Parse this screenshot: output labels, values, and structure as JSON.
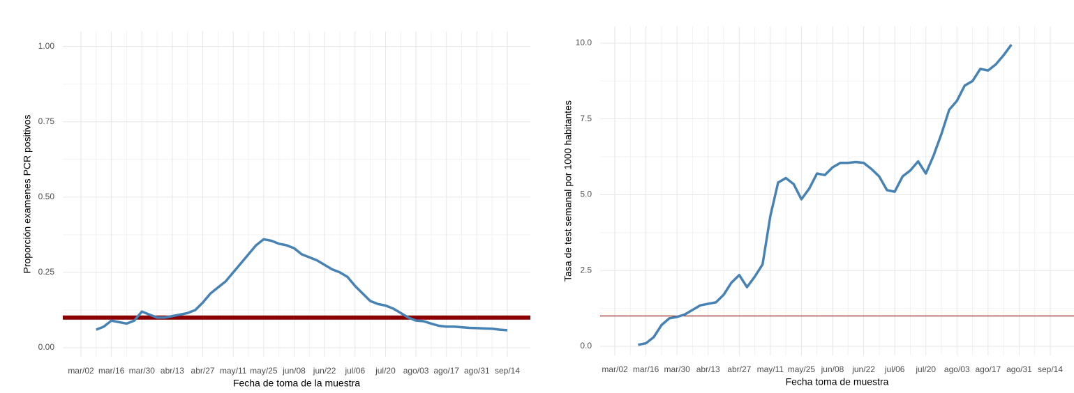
{
  "chart_data": [
    {
      "type": "line",
      "y_label": "Proporción examenes PCR positivos",
      "x_label": "Fecha de toma de la muestra",
      "categories": [
        "mar/02",
        null,
        null,
        null,
        "mar/16",
        null,
        null,
        null,
        "mar/30",
        null,
        null,
        null,
        "abr/13",
        null,
        null,
        null,
        "abr/27",
        null,
        null,
        null,
        "may/11",
        null,
        null,
        null,
        "may/25",
        null,
        null,
        null,
        "jun/08",
        null,
        null,
        null,
        "jun/22",
        null,
        null,
        null,
        "jul/06",
        null,
        null,
        null,
        "jul/20",
        null,
        null,
        null,
        "ago/03",
        null,
        null,
        null,
        "ago/17",
        null,
        null,
        null,
        "ago/31",
        null,
        null,
        null,
        "sep/14"
      ],
      "values": [
        null,
        null,
        0.06,
        0.07,
        0.09,
        0.085,
        0.08,
        0.09,
        0.12,
        0.11,
        0.1,
        0.1,
        0.105,
        0.11,
        0.115,
        0.125,
        0.15,
        0.18,
        0.2,
        0.22,
        0.25,
        0.28,
        0.31,
        0.34,
        0.36,
        0.355,
        0.345,
        0.34,
        0.33,
        0.31,
        0.3,
        0.29,
        0.275,
        0.26,
        0.25,
        0.235,
        0.205,
        0.18,
        0.155,
        0.145,
        0.14,
        0.13,
        0.115,
        0.1,
        0.09,
        0.088,
        0.08,
        0.073,
        0.07,
        0.07,
        0.068,
        0.066,
        0.065,
        0.064,
        0.063,
        0.06,
        0.058
      ],
      "color": "#4682b4",
      "ylim": [
        -0.03,
        1.05
      ],
      "yticks": [
        {
          "value": 0,
          "label": "0.00"
        },
        0.25,
        {
          "value": 0.5,
          "label": "0.50"
        },
        0.75,
        {
          "value": 1,
          "label": "1.00"
        }
      ],
      "reference_line": 0.1,
      "reference_color": "#8b0000",
      "grid": true
    },
    {
      "type": "line",
      "y_label": "Tasa de test semanal por 1000 habitantes",
      "x_label": "Fecha toma de muestra",
      "categories": [
        "mar/02",
        null,
        null,
        null,
        "mar/16",
        null,
        null,
        null,
        "mar/30",
        null,
        null,
        null,
        "abr/13",
        null,
        null,
        null,
        "abr/27",
        null,
        null,
        null,
        "may/11",
        null,
        null,
        null,
        "may/25",
        null,
        null,
        null,
        "jun/08",
        null,
        null,
        null,
        "jun/22",
        null,
        null,
        null,
        "jul/06",
        null,
        null,
        null,
        "jul/20",
        null,
        null,
        null,
        "ago/03",
        null,
        null,
        null,
        "ago/17",
        null,
        null,
        null,
        "ago/31",
        null,
        null,
        null,
        "sep/14"
      ],
      "values": [
        null,
        null,
        null,
        0.05,
        0.1,
        0.3,
        0.7,
        0.92,
        0.97,
        1.05,
        1.2,
        1.35,
        1.4,
        1.45,
        1.7,
        2.1,
        2.35,
        1.95,
        2.3,
        2.7,
        4.3,
        5.4,
        5.55,
        5.35,
        4.85,
        5.2,
        5.7,
        5.65,
        5.9,
        6.05,
        6.05,
        6.08,
        6.05,
        5.85,
        5.6,
        5.15,
        5.1,
        5.6,
        5.8,
        6.1,
        5.7,
        6.3,
        7.0,
        7.8,
        8.1,
        8.6,
        8.75,
        9.15,
        9.1,
        9.3,
        9.6,
        9.95,
        null,
        null,
        null,
        null,
        null
      ],
      "color": "#4682b4",
      "ylim": [
        -0.3,
        10.55
      ],
      "yticks": [
        {
          "value": 0,
          "label": "0.0"
        },
        2.5,
        {
          "value": 5,
          "label": "5.0"
        },
        7.5,
        {
          "value": 10,
          "label": "10.0"
        }
      ],
      "reference_line": 1,
      "reference_color": "#8b0000",
      "grid": true
    }
  ]
}
